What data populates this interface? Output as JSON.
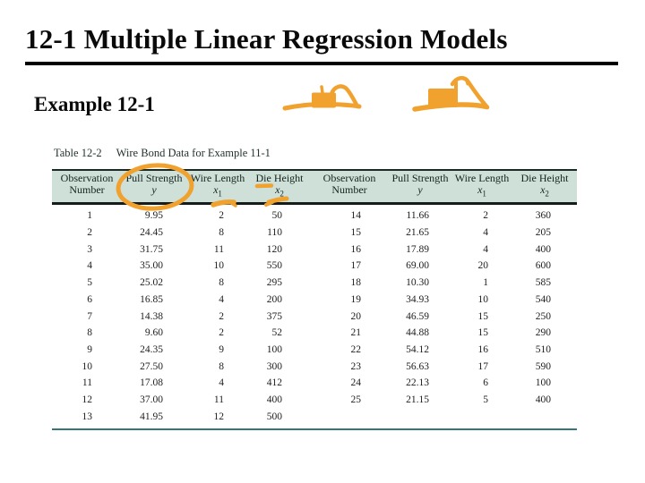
{
  "slide": {
    "title": "12-1 Multiple Linear Regression Models",
    "example_label": "Example 12-1"
  },
  "table": {
    "caption_label": "Table 12-2",
    "caption_title": "Wire Bond Data for Example 11-1",
    "columns": [
      {
        "line1": "Observation",
        "line2": "Number",
        "sym": "",
        "sub": ""
      },
      {
        "line1": "Pull Strength",
        "line2": "",
        "sym": "y",
        "sub": ""
      },
      {
        "line1": "Wire Length",
        "line2": "",
        "sym": "x",
        "sub": "1"
      },
      {
        "line1": "Die Height",
        "line2": "",
        "sym": "x",
        "sub": "2"
      }
    ],
    "left_rows": [
      [
        "1",
        "9.95",
        "2",
        "50"
      ],
      [
        "2",
        "24.45",
        "8",
        "110"
      ],
      [
        "3",
        "31.75",
        "11",
        "120"
      ],
      [
        "4",
        "35.00",
        "10",
        "550"
      ],
      [
        "5",
        "25.02",
        "8",
        "295"
      ],
      [
        "6",
        "16.85",
        "4",
        "200"
      ],
      [
        "7",
        "14.38",
        "2",
        "375"
      ],
      [
        "8",
        "9.60",
        "2",
        "52"
      ],
      [
        "9",
        "24.35",
        "9",
        "100"
      ],
      [
        "10",
        "27.50",
        "8",
        "300"
      ],
      [
        "11",
        "17.08",
        "4",
        "412"
      ],
      [
        "12",
        "37.00",
        "11",
        "400"
      ],
      [
        "13",
        "41.95",
        "12",
        "500"
      ]
    ],
    "right_rows": [
      [
        "14",
        "11.66",
        "2",
        "360"
      ],
      [
        "15",
        "21.65",
        "4",
        "205"
      ],
      [
        "16",
        "17.89",
        "4",
        "400"
      ],
      [
        "17",
        "69.00",
        "20",
        "600"
      ],
      [
        "18",
        "10.30",
        "1",
        "585"
      ],
      [
        "19",
        "34.93",
        "10",
        "540"
      ],
      [
        "20",
        "46.59",
        "15",
        "250"
      ],
      [
        "21",
        "44.88",
        "15",
        "290"
      ],
      [
        "22",
        "54.12",
        "16",
        "510"
      ],
      [
        "23",
        "56.63",
        "17",
        "590"
      ],
      [
        "24",
        "22.13",
        "6",
        "100"
      ],
      [
        "25",
        "21.15",
        "5",
        "400"
      ]
    ]
  },
  "annotations": {
    "doodles": [
      "wire-bond-sketch-small",
      "wire-bond-sketch-large"
    ],
    "marks": [
      "ellipse-around-pull-strength",
      "underline-under-die",
      "arrow-under-x2-symbol",
      "dash-under-first-wire-length-value"
    ]
  },
  "colors": {
    "accent_orange": "#F0A12E",
    "header_band_green": "#CEE0D7",
    "table_rule_teal": "#35767C",
    "title_black": "#0A0A0A"
  }
}
